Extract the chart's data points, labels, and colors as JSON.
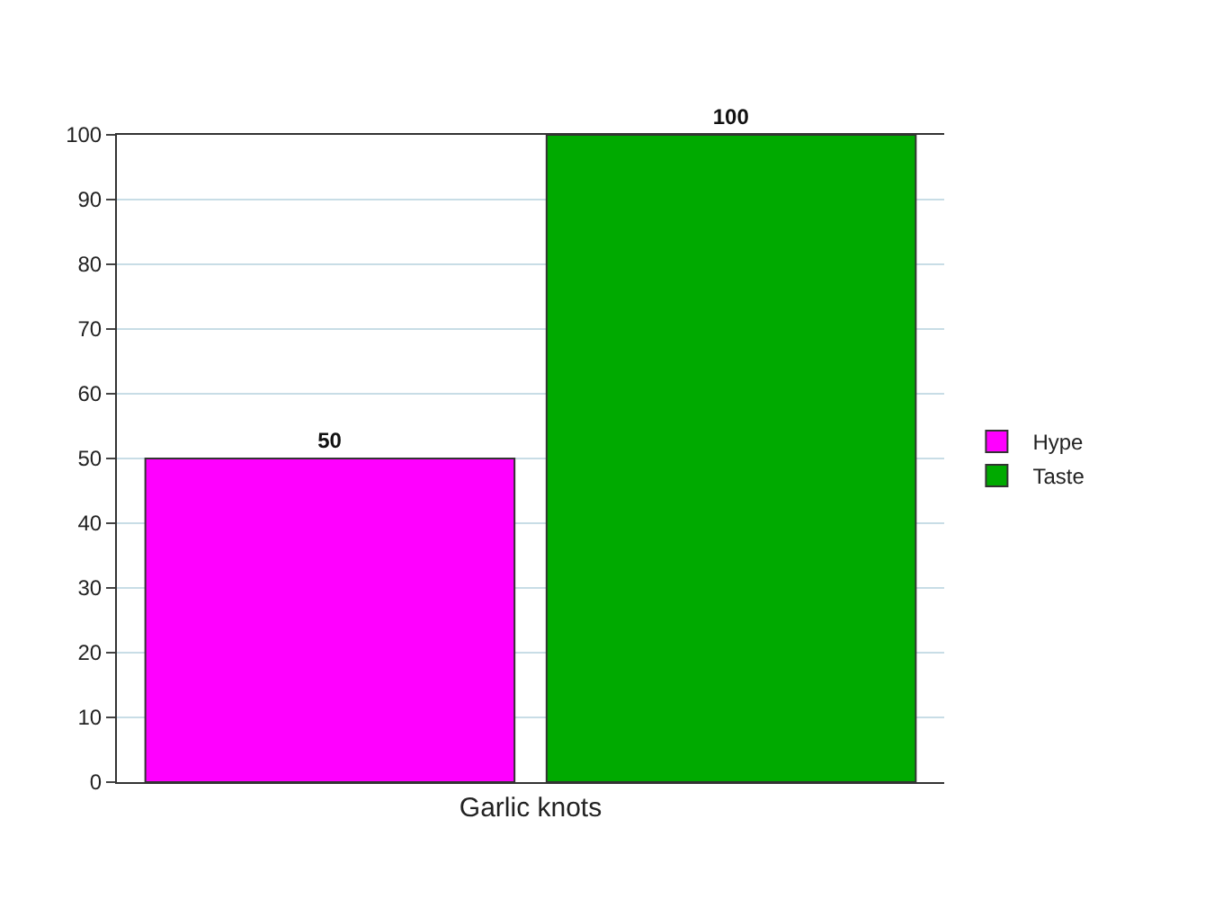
{
  "chart_data": {
    "type": "bar",
    "categories": [
      "Garlic knots"
    ],
    "series": [
      {
        "name": "Hype",
        "color": "#ff00ff",
        "values": [
          50
        ]
      },
      {
        "name": "Taste",
        "color": "#00aa00",
        "values": [
          100
        ]
      }
    ],
    "ylim": [
      0,
      100
    ],
    "yticks": [
      0,
      10,
      20,
      30,
      40,
      50,
      60,
      70,
      80,
      90,
      100
    ],
    "grid": "y",
    "legend": "right",
    "data_labels": true
  }
}
